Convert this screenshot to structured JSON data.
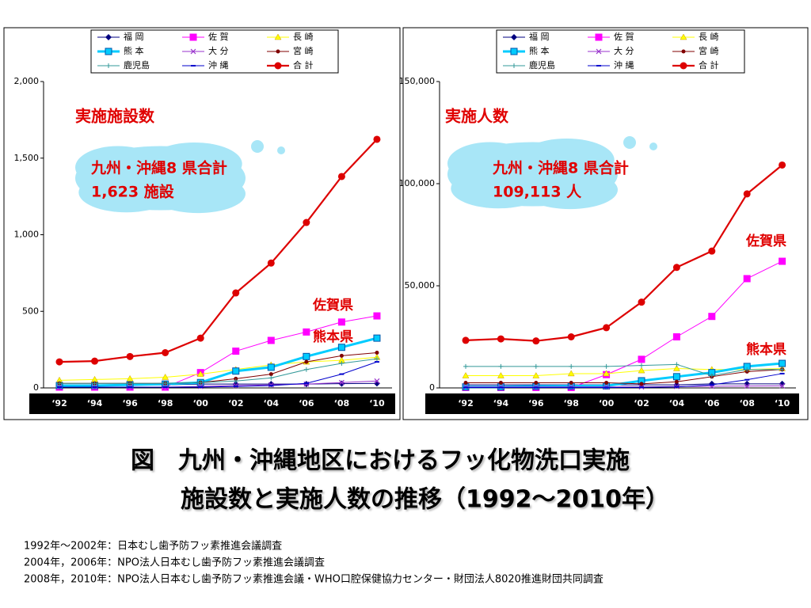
{
  "chart_data": [
    {
      "type": "line",
      "categories": [
        "‘92",
        "‘94",
        "‘96",
        "‘98",
        "‘00",
        "‘02",
        "‘04",
        "‘06",
        "‘08",
        "‘10"
      ],
      "ylim": [
        0,
        2000
      ],
      "yticks": [
        0,
        500,
        {
          "value": 1000,
          "label": "1,000"
        },
        {
          "value": 1500,
          "label": "1,500"
        },
        {
          "value": 2000,
          "label": "2,000"
        }
      ],
      "annotations": [
        "実施施設数",
        "九州・沖縄8 県合計",
        "1,623 施設",
        "佐賀県",
        "熊本県"
      ],
      "series": [
        {
          "name": "福 岡",
          "color": "#000080",
          "marker": "diamond",
          "values": [
            20,
            20,
            20,
            20,
            25,
            25,
            25,
            25,
            28,
            30
          ]
        },
        {
          "name": "佐 賀",
          "color": "#ff00ff",
          "marker": "square",
          "values": [
            5,
            5,
            5,
            5,
            100,
            240,
            310,
            365,
            430,
            470
          ]
        },
        {
          "name": "長 崎",
          "color": "#ffff00",
          "marker": "triangle",
          "values": [
            50,
            55,
            60,
            70,
            90,
            120,
            150,
            170,
            180,
            200
          ]
        },
        {
          "name": "熊 本",
          "color": "#00ccff",
          "marker": "square",
          "values": [
            15,
            15,
            20,
            25,
            35,
            110,
            135,
            205,
            265,
            325
          ]
        },
        {
          "name": "大 分",
          "color": "#9933cc",
          "marker": "x",
          "values": [
            5,
            5,
            5,
            5,
            10,
            15,
            20,
            25,
            35,
            45
          ]
        },
        {
          "name": "宮 崎",
          "color": "#800000",
          "marker": "circle",
          "values": [
            30,
            30,
            30,
            30,
            35,
            60,
            90,
            170,
            210,
            230
          ]
        },
        {
          "name": "鹿児島",
          "color": "#339999",
          "marker": "plus",
          "values": [
            30,
            30,
            30,
            30,
            35,
            45,
            65,
            120,
            160,
            190
          ]
        },
        {
          "name": "沖 縄",
          "color": "#0000cc",
          "marker": "dash",
          "values": [
            5,
            5,
            5,
            5,
            5,
            10,
            15,
            30,
            90,
            170
          ]
        },
        {
          "name": "合 計",
          "color": "#dd0000",
          "marker": "circle",
          "values": [
            170,
            175,
            205,
            230,
            325,
            620,
            815,
            1080,
            1380,
            1623
          ]
        }
      ]
    },
    {
      "type": "line",
      "categories": [
        "‘92",
        "‘94",
        "‘96",
        "‘98",
        "‘00",
        "‘02",
        "‘04",
        "‘06",
        "‘08",
        "‘10"
      ],
      "ylim": [
        0,
        150000
      ],
      "yticks": [
        0,
        {
          "value": 50000,
          "label": "50,000"
        },
        {
          "value": 100000,
          "label": "100,000"
        },
        {
          "value": 150000,
          "label": "150,000"
        }
      ],
      "annotations": [
        "実施人数",
        "九州・沖縄8 県合計",
        "109,113 人",
        "佐賀県",
        "熊本県"
      ],
      "series": [
        {
          "name": "福 岡",
          "color": "#000080",
          "marker": "diamond",
          "values": [
            1500,
            1500,
            1500,
            1500,
            1500,
            1500,
            1500,
            2000,
            2000,
            2000
          ]
        },
        {
          "name": "佐 賀",
          "color": "#ff00ff",
          "marker": "square",
          "values": [
            200,
            200,
            200,
            200,
            6500,
            14000,
            25000,
            35000,
            53500,
            62000
          ]
        },
        {
          "name": "長 崎",
          "color": "#ffff00",
          "marker": "triangle",
          "values": [
            6000,
            6000,
            6000,
            7000,
            7000,
            8500,
            9500,
            9000,
            9000,
            9500
          ]
        },
        {
          "name": "熊 本",
          "color": "#00ccff",
          "marker": "square",
          "values": [
            500,
            500,
            800,
            900,
            1000,
            3500,
            5500,
            7500,
            10500,
            12000
          ]
        },
        {
          "name": "大 分",
          "color": "#9933cc",
          "marker": "x",
          "values": [
            500,
            500,
            500,
            500,
            500,
            500,
            700,
            800,
            900,
            1000
          ]
        },
        {
          "name": "宮 崎",
          "color": "#800000",
          "marker": "circle",
          "values": [
            2500,
            2500,
            2500,
            2500,
            2500,
            2000,
            3000,
            5500,
            8000,
            9000
          ]
        },
        {
          "name": "鹿児島",
          "color": "#339999",
          "marker": "plus",
          "values": [
            10500,
            10500,
            10500,
            10500,
            10500,
            11000,
            11500,
            6000,
            9000,
            9000
          ]
        },
        {
          "name": "沖 縄",
          "color": "#0000cc",
          "marker": "dash",
          "values": [
            200,
            200,
            200,
            200,
            200,
            300,
            500,
            1500,
            4000,
            7000
          ]
        },
        {
          "name": "合 計",
          "color": "#dd0000",
          "marker": "circle",
          "values": [
            23300,
            24000,
            23000,
            25000,
            29500,
            42000,
            59000,
            67000,
            95000,
            109113
          ]
        }
      ]
    }
  ],
  "caption": [
    "図　九州・沖縄地区におけるフッ化物洗口実施",
    "施設数と実施人数の推移（1992～2010年）"
  ],
  "notes": [
    "1992年～2002年：日本むし歯予防フッ素推進会議調査",
    "2004年，2006年：NPO法人日本むし歯予防フッ素推進会議調査",
    "2008年，2010年：NPO法人日本むし歯予防フッ素推進会議・WHO口腔保健協力センター・財団法人8020推進財団共同調査"
  ]
}
